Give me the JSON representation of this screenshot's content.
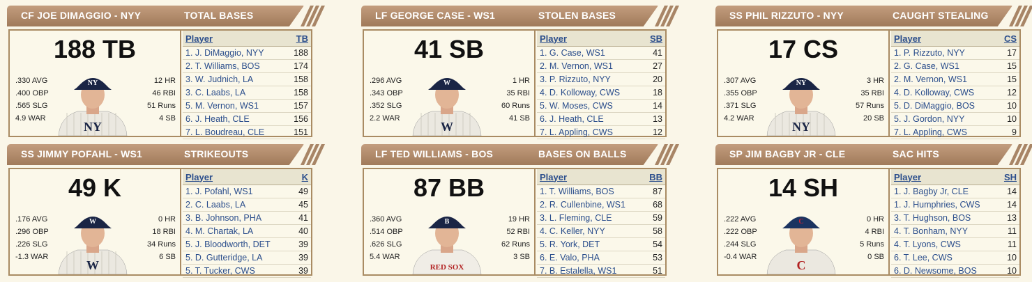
{
  "panels": [
    {
      "left": "CF JOE DIMAGGIO - NYY",
      "right": "TOTAL BASES",
      "big": "188 TB",
      "col": "TB",
      "team": "nyy",
      "stats_l": [
        ".330 AVG",
        ".400 OBP",
        ".565 SLG",
        "4.9 WAR"
      ],
      "stats_r": [
        "12 HR",
        "46 RBI",
        "51 Runs",
        "4 SB"
      ],
      "rows": [
        {
          "p": "1. J. DiMaggio, NYY",
          "v": "188"
        },
        {
          "p": "2. T. Williams, BOS",
          "v": "174"
        },
        {
          "p": "3. W. Judnich, LA",
          "v": "158"
        },
        {
          "p": "3. C. Laabs, LA",
          "v": "158"
        },
        {
          "p": "5. M. Vernon, WS1",
          "v": "157"
        },
        {
          "p": "6. J. Heath, CLE",
          "v": "156"
        },
        {
          "p": "7. L. Boudreau, CLE",
          "v": "151"
        }
      ]
    },
    {
      "left": "LF GEORGE CASE - WS1",
      "right": "STOLEN BASES",
      "big": "41 SB",
      "col": "SB",
      "team": "ws1",
      "stats_l": [
        ".296 AVG",
        ".343 OBP",
        ".352 SLG",
        "2.2 WAR"
      ],
      "stats_r": [
        "1 HR",
        "35 RBI",
        "60 Runs",
        "41 SB"
      ],
      "rows": [
        {
          "p": "1. G. Case, WS1",
          "v": "41"
        },
        {
          "p": "2. M. Vernon, WS1",
          "v": "27"
        },
        {
          "p": "3. P. Rizzuto, NYY",
          "v": "20"
        },
        {
          "p": "4. D. Kolloway, CWS",
          "v": "18"
        },
        {
          "p": "5. W. Moses, CWS",
          "v": "14"
        },
        {
          "p": "6. J. Heath, CLE",
          "v": "13"
        },
        {
          "p": "7. L. Appling, CWS",
          "v": "12"
        }
      ]
    },
    {
      "left": "SS PHIL RIZZUTO - NYY",
      "right": "CAUGHT STEALING",
      "big": "17 CS",
      "col": "CS",
      "team": "nyy",
      "stats_l": [
        ".307 AVG",
        ".355 OBP",
        ".371 SLG",
        "4.2 WAR"
      ],
      "stats_r": [
        "3 HR",
        "35 RBI",
        "57 Runs",
        "20 SB"
      ],
      "rows": [
        {
          "p": "1. P. Rizzuto, NYY",
          "v": "17"
        },
        {
          "p": "2. G. Case, WS1",
          "v": "15"
        },
        {
          "p": "2. M. Vernon, WS1",
          "v": "15"
        },
        {
          "p": "4. D. Kolloway, CWS",
          "v": "12"
        },
        {
          "p": "5. D. DiMaggio, BOS",
          "v": "10"
        },
        {
          "p": "5. J. Gordon, NYY",
          "v": "10"
        },
        {
          "p": "7. L. Appling, CWS",
          "v": "9"
        }
      ]
    },
    {
      "left": "SS JIMMY POFAHL - WS1",
      "right": "STRIKEOUTS",
      "big": "49 K",
      "col": "K",
      "team": "ws1",
      "stats_l": [
        ".176 AVG",
        ".296 OBP",
        ".226 SLG",
        "-1.3 WAR"
      ],
      "stats_r": [
        "0 HR",
        "18 RBI",
        "34 Runs",
        "6 SB"
      ],
      "rows": [
        {
          "p": "1. J. Pofahl, WS1",
          "v": "49"
        },
        {
          "p": "2. C. Laabs, LA",
          "v": "45"
        },
        {
          "p": "3. B. Johnson, PHA",
          "v": "41"
        },
        {
          "p": "4. M. Chartak, LA",
          "v": "40"
        },
        {
          "p": "5. J. Bloodworth, DET",
          "v": "39"
        },
        {
          "p": "5. D. Gutteridge, LA",
          "v": "39"
        },
        {
          "p": "5. T. Tucker, CWS",
          "v": "39"
        }
      ]
    },
    {
      "left": "LF TED WILLIAMS - BOS",
      "right": "BASES ON BALLS",
      "big": "87 BB",
      "col": "BB",
      "team": "bos",
      "stats_l": [
        ".360 AVG",
        ".514 OBP",
        ".626 SLG",
        "5.4 WAR"
      ],
      "stats_r": [
        "19 HR",
        "52 RBI",
        "62 Runs",
        "3 SB"
      ],
      "rows": [
        {
          "p": "1. T. Williams, BOS",
          "v": "87"
        },
        {
          "p": "2. R. Cullenbine, WS1",
          "v": "68"
        },
        {
          "p": "3. L. Fleming, CLE",
          "v": "59"
        },
        {
          "p": "4. C. Keller, NYY",
          "v": "58"
        },
        {
          "p": "5. R. York, DET",
          "v": "54"
        },
        {
          "p": "6. E. Valo, PHA",
          "v": "53"
        },
        {
          "p": "7. B. Estalella, WS1",
          "v": "51"
        }
      ]
    },
    {
      "left": "SP JIM BAGBY JR - CLE",
      "right": "SAC HITS",
      "big": "14 SH",
      "col": "SH",
      "team": "cle",
      "stats_l": [
        ".222 AVG",
        ".222 OBP",
        ".244 SLG",
        "-0.4 WAR"
      ],
      "stats_r": [
        "0 HR",
        "4 RBI",
        "5 Runs",
        "0 SB"
      ],
      "rows": [
        {
          "p": "1. J. Bagby Jr, CLE",
          "v": "14"
        },
        {
          "p": "1. J. Humphries, CWS",
          "v": "14"
        },
        {
          "p": "3. T. Hughson, BOS",
          "v": "13"
        },
        {
          "p": "4. T. Bonham, NYY",
          "v": "11"
        },
        {
          "p": "4. T. Lyons, CWS",
          "v": "11"
        },
        {
          "p": "6. T. Lee, CWS",
          "v": "10"
        },
        {
          "p": "6. D. Newsome, BOS",
          "v": "10"
        }
      ]
    }
  ],
  "player_header": "Player",
  "colors": {
    "link": "#2b4e8c",
    "header_bg": "#a07a5a",
    "border": "#a98b63",
    "cap_nyy": "#1f2a4a",
    "cap_bos": "#1f2a4a",
    "cap_cle": "#1f3a6a",
    "jersey_pinstripe": "#e9e6df"
  }
}
